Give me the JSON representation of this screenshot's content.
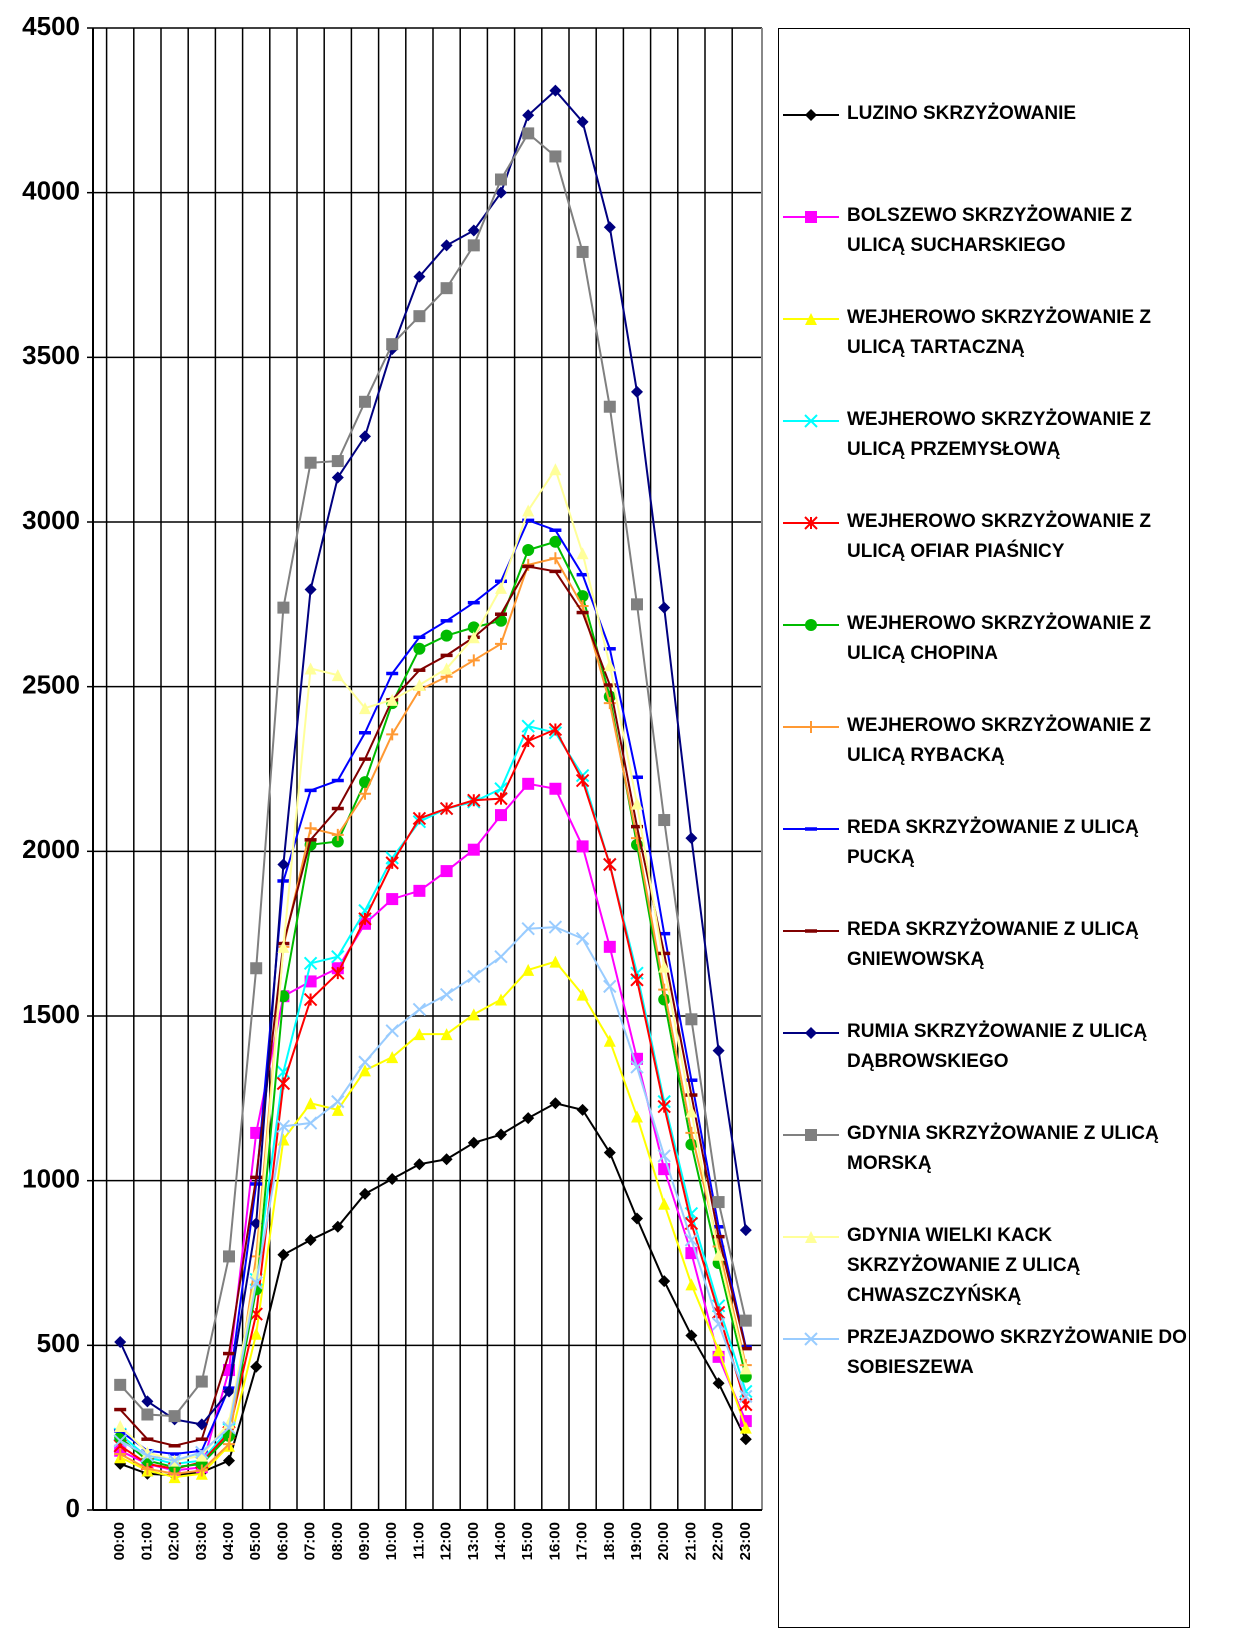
{
  "chart_data": {
    "type": "line",
    "categories": [
      "00:00",
      "01:00",
      "02:00",
      "03:00",
      "04:00",
      "05:00",
      "06:00",
      "07:00",
      "08:00",
      "09:00",
      "10:00",
      "11:00",
      "12:00",
      "13:00",
      "14:00",
      "15:00",
      "16:00",
      "17:00",
      "18:00",
      "19:00",
      "20:00",
      "21:00",
      "22:00",
      "23:00"
    ],
    "ylim": [
      0,
      4500
    ],
    "yticks": [
      0,
      500,
      1000,
      1500,
      2000,
      2500,
      3000,
      3500,
      4000,
      4500
    ],
    "grid": true,
    "legend": "right",
    "series": [
      {
        "name": "LUZINO SKRZYŻOWANIE",
        "color": "#000000",
        "marker": "diamond",
        "values": [
          140,
          110,
          105,
          115,
          150,
          435,
          775,
          820,
          860,
          960,
          1005,
          1050,
          1065,
          1115,
          1140,
          1190,
          1235,
          1215,
          1085,
          885,
          695,
          530,
          385,
          215
        ]
      },
      {
        "name": "BOLSZEWO SKRZYŻOWANIE Z ULICĄ SUCHARSKIEGO",
        "color": "#ff00ff",
        "marker": "square",
        "values": [
          180,
          140,
          120,
          130,
          425,
          1145,
          1560,
          1605,
          1645,
          1780,
          1855,
          1880,
          1940,
          2005,
          2110,
          2205,
          2190,
          2015,
          1710,
          1370,
          1035,
          780,
          465,
          270
        ]
      },
      {
        "name": "WEJHEROWO SKRZYŻOWANIE Z ULICĄ TARTACZNĄ",
        "color": "#ffff00",
        "marker": "triangle",
        "values": [
          160,
          120,
          100,
          110,
          195,
          535,
          1125,
          1235,
          1215,
          1335,
          1375,
          1445,
          1445,
          1505,
          1550,
          1640,
          1665,
          1565,
          1425,
          1195,
          930,
          685,
          485,
          250
        ]
      },
      {
        "name": "WEJHEROWO SKRZYŻOWANIE Z ULICĄ PRZEMYSŁOWĄ",
        "color": "#00ffff",
        "marker": "x",
        "values": [
          230,
          160,
          140,
          150,
          245,
          700,
          1330,
          1660,
          1680,
          1820,
          1980,
          2090,
          2130,
          2150,
          2190,
          2380,
          2360,
          2230,
          1960,
          1630,
          1240,
          900,
          620,
          360
        ]
      },
      {
        "name": "WEJHEROWO SKRZYŻOWANIE Z ULICĄ OFIAR PIAŚNICY",
        "color": "#ff0000",
        "marker": "asterisk",
        "values": [
          195,
          140,
          125,
          145,
          235,
          595,
          1295,
          1550,
          1630,
          1795,
          1965,
          2100,
          2130,
          2155,
          2160,
          2335,
          2370,
          2215,
          1960,
          1610,
          1225,
          870,
          600,
          320
        ]
      },
      {
        "name": "WEJHEROWO SKRZYŻOWANIE Z ULICĄ CHOPINA",
        "color": "#00bb00",
        "marker": "circle",
        "values": [
          220,
          150,
          130,
          140,
          225,
          670,
          1560,
          2020,
          2030,
          2210,
          2450,
          2615,
          2655,
          2680,
          2700,
          2915,
          2940,
          2775,
          2470,
          2020,
          1550,
          1110,
          750,
          405
        ]
      },
      {
        "name": "WEJHEROWO SKRZYŻOWANIE Z ULICĄ RYBACKĄ",
        "color": "#ff9933",
        "marker": "plus",
        "values": [
          170,
          125,
          110,
          120,
          200,
          770,
          1710,
          2070,
          2050,
          2175,
          2355,
          2490,
          2530,
          2580,
          2630,
          2870,
          2890,
          2745,
          2450,
          2040,
          1580,
          1145,
          800,
          440
        ]
      },
      {
        "name": "REDA SKRZYŻOWANIE Z ULICĄ PUCKĄ",
        "color": "#0000ff",
        "marker": "dash",
        "values": [
          240,
          180,
          170,
          180,
          370,
          990,
          1910,
          2185,
          2215,
          2360,
          2540,
          2650,
          2700,
          2755,
          2820,
          3005,
          2975,
          2840,
          2615,
          2225,
          1750,
          1305,
          860,
          495
        ]
      },
      {
        "name": "REDA SKRZYŻOWANIE Z ULICĄ GNIEWOWSKĄ",
        "color": "#800000",
        "marker": "dash",
        "values": [
          305,
          215,
          195,
          215,
          475,
          1010,
          1720,
          2035,
          2130,
          2280,
          2460,
          2550,
          2595,
          2650,
          2720,
          2865,
          2850,
          2725,
          2505,
          2075,
          1690,
          1260,
          830,
          490
        ]
      },
      {
        "name": "RUMIA SKRZYŻOWANIE Z ULICĄ DĄBROWSKIEGO",
        "color": "#000080",
        "marker": "diamond",
        "values": [
          510,
          330,
          275,
          260,
          360,
          870,
          1960,
          2795,
          3135,
          3260,
          3525,
          3745,
          3840,
          3885,
          4000,
          4235,
          4310,
          4215,
          3895,
          3395,
          2740,
          2040,
          1395,
          850
        ]
      },
      {
        "name": "GDYNIA SKRZYŻOWANIE Z ULICĄ MORSKĄ",
        "color": "#808080",
        "marker": "square",
        "values": [
          380,
          290,
          285,
          390,
          770,
          1645,
          2740,
          3180,
          3185,
          3365,
          3540,
          3625,
          3710,
          3840,
          4040,
          4180,
          4110,
          3820,
          3350,
          2750,
          2095,
          1490,
          935,
          575
        ]
      },
      {
        "name": "GDYNIA WIELKI KACK SKRZYŻOWANIE Z ULICĄ CHWASZCZYŃSKĄ",
        "color": "#ffff99",
        "marker": "triangle",
        "values": [
          255,
          175,
          150,
          165,
          265,
          720,
          1710,
          2555,
          2535,
          2435,
          2460,
          2505,
          2555,
          2650,
          2800,
          3035,
          3160,
          2905,
          2565,
          2145,
          1650,
          1210,
          775,
          430
        ]
      },
      {
        "name": "PRZEJAZDOWO SKRZYŻOWANIE DO SOBIESZEWA",
        "color": "#99ccff",
        "marker": "x",
        "values": [
          210,
          165,
          150,
          175,
          250,
          690,
          1165,
          1175,
          1240,
          1360,
          1455,
          1520,
          1565,
          1620,
          1680,
          1765,
          1770,
          1735,
          1590,
          1345,
          1075,
          820,
          565,
          345
        ]
      }
    ]
  }
}
